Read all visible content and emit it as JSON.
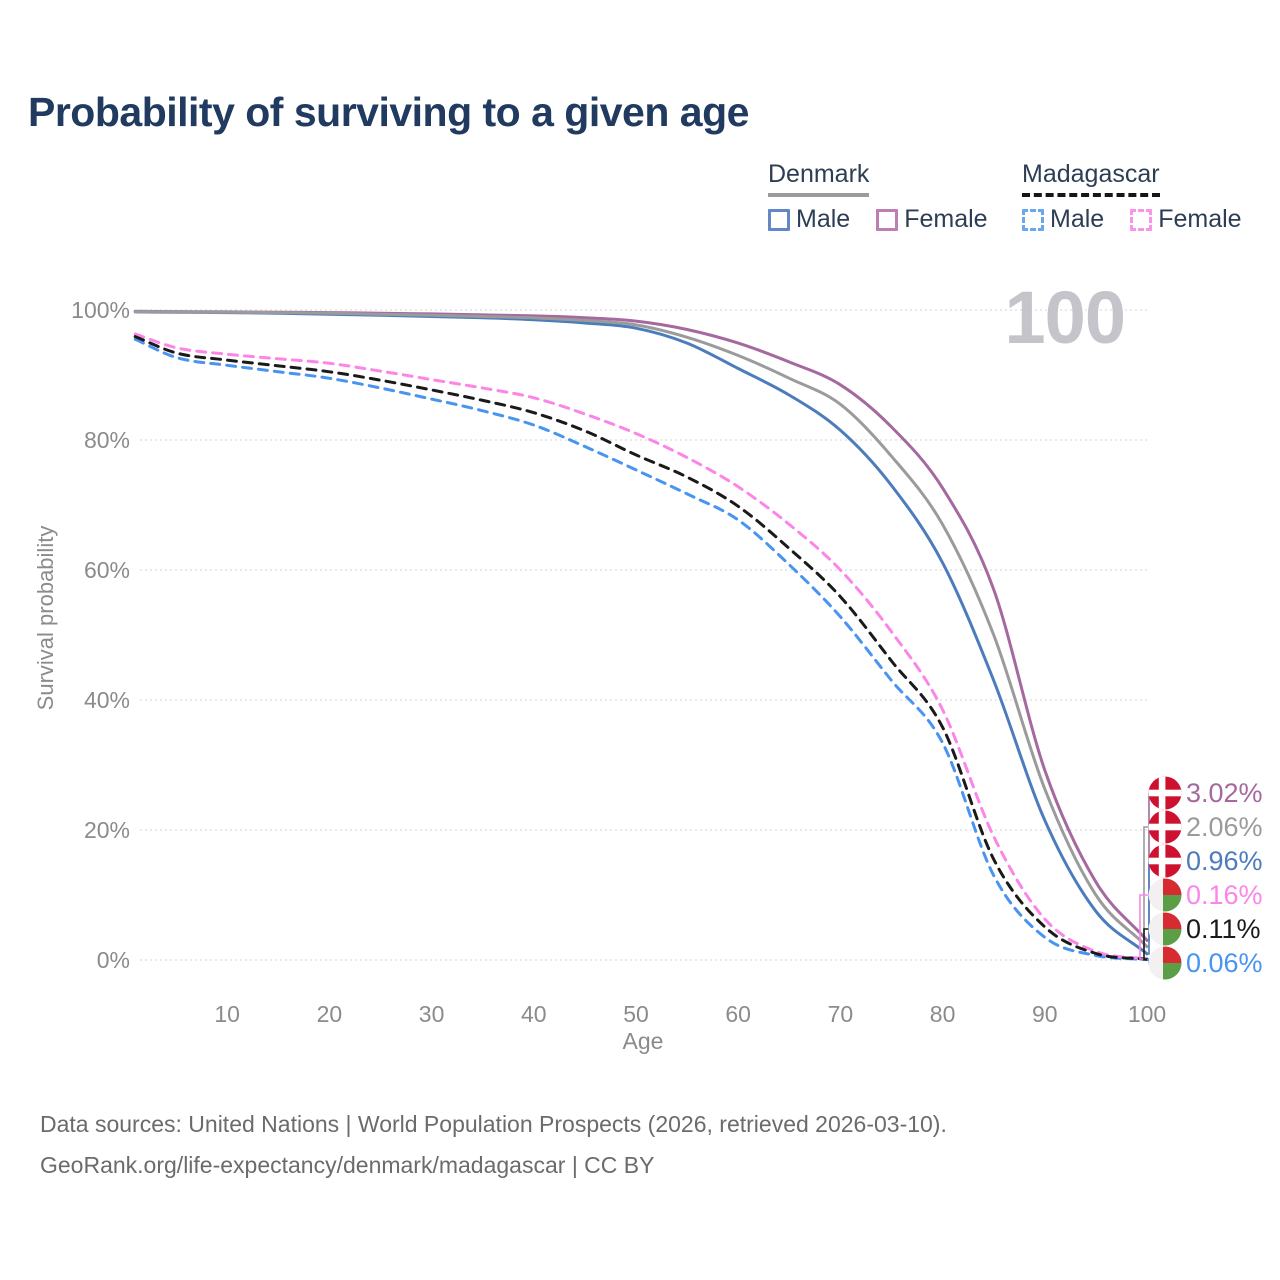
{
  "title": "Probability of surviving to a given age",
  "watermark": "100",
  "legend": {
    "position": "top-right",
    "groups": [
      {
        "name": "Denmark",
        "line_style": "solid",
        "line_color": "#9b9b9b",
        "items": [
          {
            "label": "Male",
            "color": "#6287c3",
            "dashed": false
          },
          {
            "label": "Female",
            "color": "#bd7fb2",
            "dashed": false
          }
        ]
      },
      {
        "name": "Madagascar",
        "line_style": "dashed",
        "line_color": "#161616",
        "items": [
          {
            "label": "Male",
            "color": "#6aa7f3",
            "dashed": true
          },
          {
            "label": "Female",
            "color": "#fb94e9",
            "dashed": true
          }
        ]
      }
    ]
  },
  "chart_data": {
    "type": "line",
    "title": "Probability of surviving to a given age",
    "xlabel": "Age",
    "ylabel": "Survival probability",
    "xlim": [
      0,
      100
    ],
    "ylim": [
      0,
      100
    ],
    "grid": "horizontal",
    "legend_position": "top-right",
    "x_ticks": [
      10,
      20,
      30,
      40,
      50,
      60,
      70,
      80,
      90,
      100
    ],
    "y_ticks": [
      {
        "value": 0,
        "label": "0%"
      },
      {
        "value": 20,
        "label": "20%"
      },
      {
        "value": 40,
        "label": "40%"
      },
      {
        "value": 60,
        "label": "60%"
      },
      {
        "value": 80,
        "label": "80%"
      },
      {
        "value": 100,
        "label": "100%"
      }
    ],
    "ages": [
      1,
      5,
      10,
      15,
      20,
      25,
      30,
      35,
      40,
      45,
      50,
      55,
      60,
      65,
      70,
      75,
      80,
      85,
      90,
      95,
      100
    ],
    "series": [
      {
        "name": "Denmark Male",
        "country": "Denmark",
        "sex": "Male",
        "color": "#4d7cbd",
        "dashed": false,
        "values": [
          99.7,
          99.65,
          99.6,
          99.5,
          99.35,
          99.2,
          99.0,
          98.8,
          98.5,
          98.0,
          97.2,
          94.9,
          91.0,
          86.9,
          81.5,
          73.0,
          61.1,
          43.0,
          21.5,
          7.5,
          0.96
        ]
      },
      {
        "name": "Denmark Female",
        "country": "Denmark",
        "sex": "Female",
        "color": "#a5689f",
        "dashed": false,
        "values": [
          99.8,
          99.75,
          99.7,
          99.65,
          99.6,
          99.5,
          99.4,
          99.25,
          99.1,
          98.8,
          98.3,
          97.0,
          94.9,
          92.0,
          88.5,
          82.0,
          72.6,
          57.0,
          29.2,
          12.0,
          3.02
        ]
      },
      {
        "name": "Denmark Total",
        "country": "Denmark",
        "sex": "Both",
        "color": "#9b9b9b",
        "dashed": false,
        "values": [
          99.75,
          99.7,
          99.65,
          99.6,
          99.5,
          99.35,
          99.2,
          99.0,
          98.8,
          98.4,
          97.7,
          95.8,
          93.0,
          89.5,
          85.5,
          77.5,
          67.0,
          50.0,
          26.3,
          10.0,
          2.06
        ]
      },
      {
        "name": "Madagascar Male",
        "country": "Madagascar",
        "sex": "Male",
        "color": "#4a94f1",
        "dashed": true,
        "values": [
          95.5,
          92.7,
          91.5,
          90.5,
          89.5,
          88.0,
          86.3,
          84.5,
          82.3,
          79.0,
          75.4,
          71.7,
          67.7,
          60.8,
          52.8,
          43.0,
          33.4,
          13.0,
          3.5,
          0.7,
          0.06
        ]
      },
      {
        "name": "Madagascar Female",
        "country": "Madagascar",
        "sex": "Female",
        "color": "#fb86e8",
        "dashed": true,
        "values": [
          96.3,
          94.2,
          93.2,
          92.5,
          91.8,
          90.6,
          89.3,
          88.0,
          86.5,
          84.0,
          81.0,
          77.3,
          72.8,
          67.0,
          60.0,
          50.5,
          38.5,
          19.0,
          6.3,
          1.3,
          0.16
        ]
      },
      {
        "name": "Madagascar Total",
        "country": "Madagascar",
        "sex": "Both",
        "color": "#1a1a1a",
        "dashed": true,
        "values": [
          95.9,
          93.4,
          92.3,
          91.4,
          90.5,
          89.2,
          87.7,
          86.1,
          84.2,
          81.4,
          77.7,
          74.3,
          69.8,
          63.3,
          55.9,
          46.0,
          35.8,
          15.5,
          5.1,
          1.0,
          0.11
        ]
      }
    ],
    "end_labels": [
      {
        "text": "3.02%",
        "value": 3.02,
        "series": "Denmark Female",
        "flag": "denmark",
        "color": "#a5689f"
      },
      {
        "text": "2.06%",
        "value": 2.06,
        "series": "Denmark Total",
        "flag": "denmark",
        "color": "#9b9b9b"
      },
      {
        "text": "0.96%",
        "value": 0.96,
        "series": "Denmark Male",
        "flag": "denmark",
        "color": "#4d7cbd"
      },
      {
        "text": "0.16%",
        "value": 0.16,
        "series": "Madagascar Female",
        "flag": "madagascar",
        "color": "#fb86e8"
      },
      {
        "text": "0.11%",
        "value": 0.11,
        "series": "Madagascar Total",
        "flag": "madagascar",
        "color": "#1a1a1a"
      },
      {
        "text": "0.06%",
        "value": 0.06,
        "series": "Madagascar Male",
        "flag": "madagascar",
        "color": "#4a94f1"
      }
    ]
  },
  "footer": {
    "line1": "Data sources: United Nations | World Population Prospects (2026, retrieved 2026-03-10).",
    "line2": "GeoRank.org/life-expectancy/denmark/madagascar | CC BY"
  }
}
